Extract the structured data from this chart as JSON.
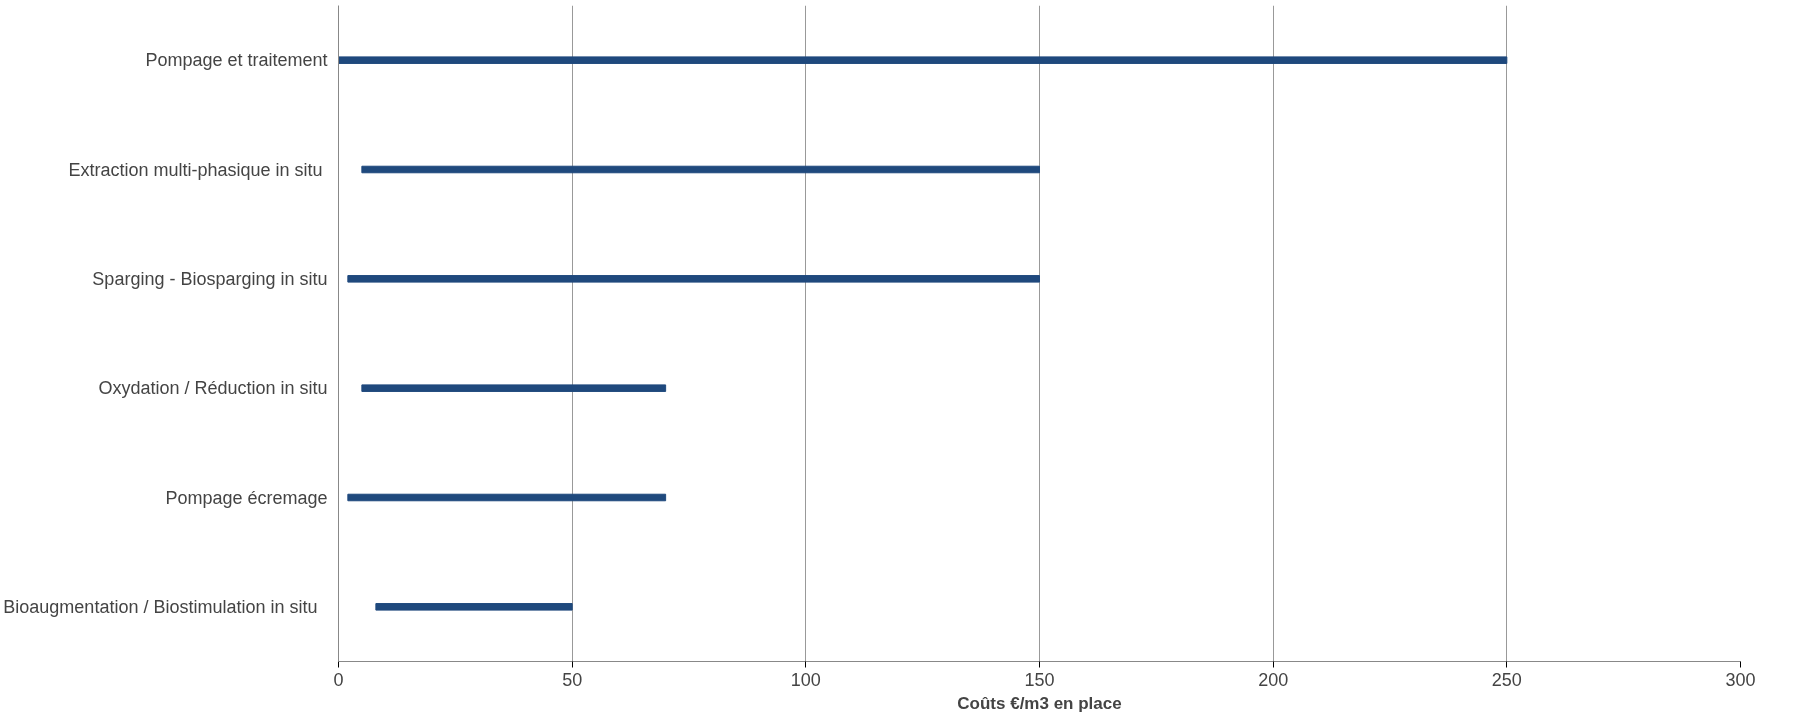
{
  "chart_data": {
    "type": "bar",
    "orientation": "horizontal",
    "xlabel": "Coûts €/m3 en place",
    "categories": [
      "Pompage et traitement",
      "Extraction multi-phasique  in situ",
      "Sparging - Biosparging in situ",
      "Oxydation / Réduction in situ",
      "Pompage écremage",
      "Bioaugmentation  / Biostimulation  in situ"
    ],
    "base": [
      0,
      5,
      2,
      5,
      2,
      8
    ],
    "values": [
      250,
      145,
      148,
      65,
      68,
      42
    ],
    "color": "#1f497d",
    "xlim": [
      0,
      300
    ],
    "xticks": [
      0,
      50,
      100,
      150,
      200,
      250,
      300
    ],
    "grid": "x"
  }
}
